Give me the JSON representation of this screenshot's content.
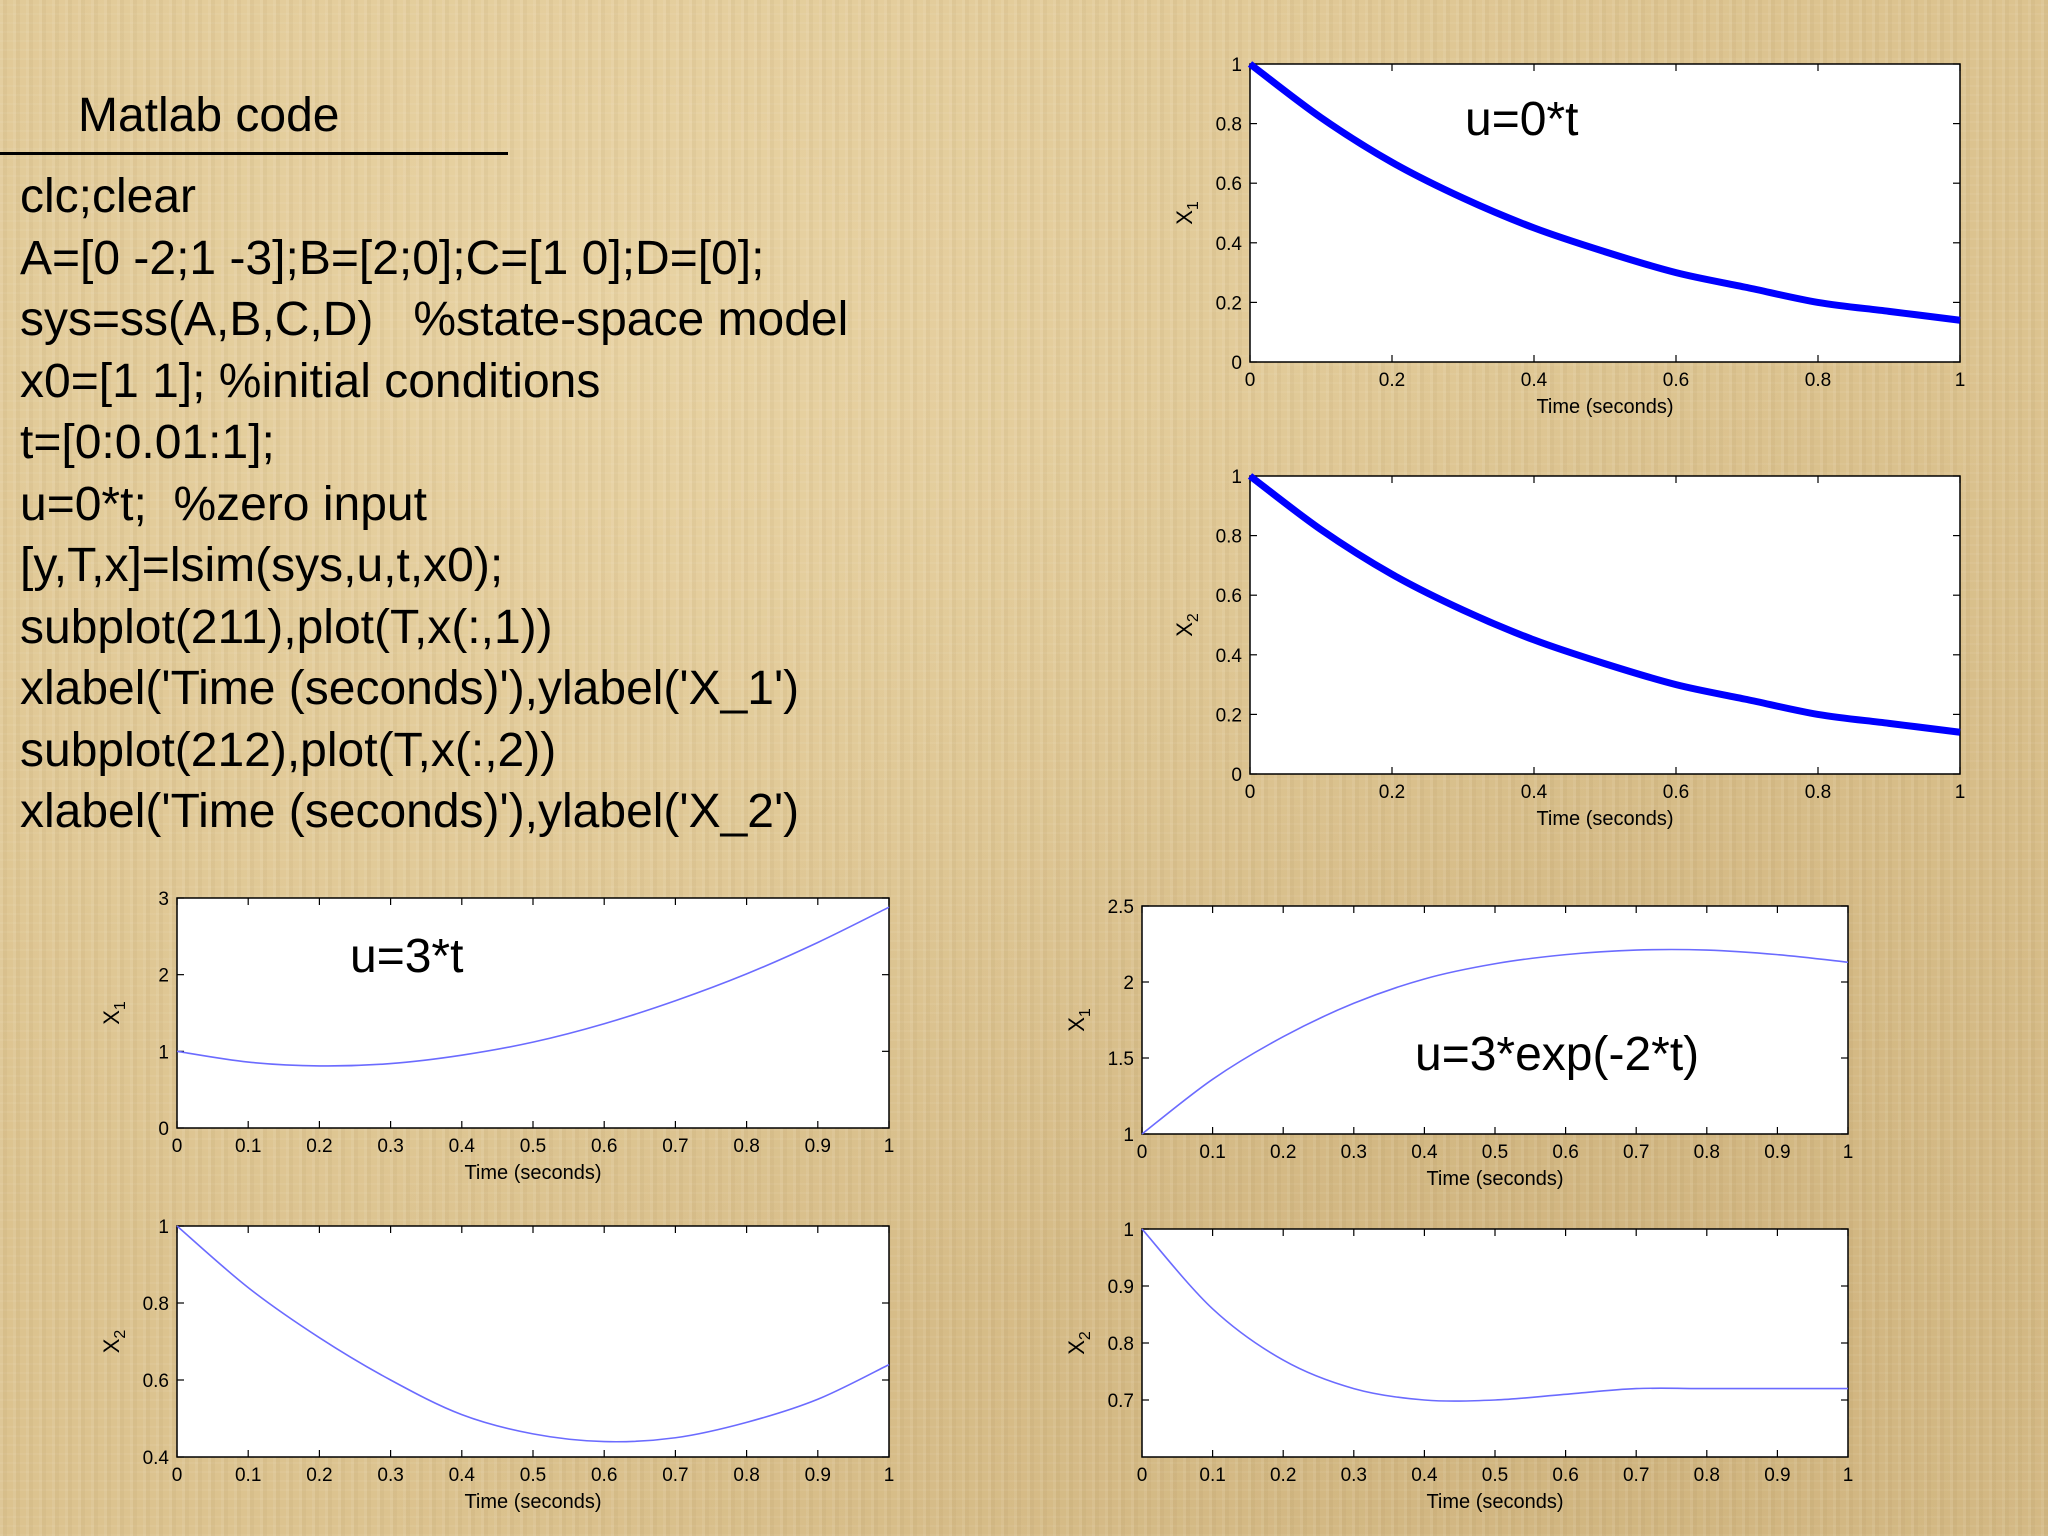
{
  "slide": {
    "heading": "Matlab code",
    "code_lines": [
      "clc;clear",
      "A=[0 -2;1 -3];B=[2;0];C=[1 0];D=[0];",
      "sys=ss(A,B,C,D)   %state-space model",
      "x0=[1 1]; %initial conditions",
      "t=[0:0.01:1];",
      "u=0*t;  %zero input",
      "[y,T,x]=lsim(sys,u,t,x0);",
      "subplot(211),plot(T,x(:,1))",
      "xlabel('Time (seconds)'),ylabel('X_1')",
      "subplot(212),plot(T,x(:,2))",
      "xlabel('Time (seconds)'),ylabel('X_2')"
    ]
  },
  "colors": {
    "line": "#0000ff",
    "thin_line": "#6b6bff",
    "axes": "#000000",
    "plot_bg": "#ffffff"
  },
  "chart_data": [
    {
      "type": "line",
      "annotation": "u=0*t",
      "xlabel": "Time (seconds)",
      "ylabel": "X",
      "ylabel_sub": "1",
      "xlim": [
        0,
        1
      ],
      "ylim": [
        0,
        1
      ],
      "xticks": [
        0,
        0.2,
        0.4,
        0.6,
        0.8,
        1
      ],
      "yticks": [
        0,
        0.2,
        0.4,
        0.6,
        0.8,
        1
      ],
      "x": [
        0,
        0.1,
        0.2,
        0.3,
        0.4,
        0.5,
        0.6,
        0.7,
        0.8,
        0.9,
        1.0
      ],
      "series": [
        {
          "values": [
            1.0,
            0.82,
            0.67,
            0.55,
            0.45,
            0.37,
            0.3,
            0.25,
            0.2,
            0.17,
            0.14
          ]
        }
      ],
      "line_style": "thick"
    },
    {
      "type": "line",
      "xlabel": "Time (seconds)",
      "ylabel": "X",
      "ylabel_sub": "2",
      "xlim": [
        0,
        1
      ],
      "ylim": [
        0,
        1
      ],
      "xticks": [
        0,
        0.2,
        0.4,
        0.6,
        0.8,
        1
      ],
      "yticks": [
        0,
        0.2,
        0.4,
        0.6,
        0.8,
        1
      ],
      "x": [
        0,
        0.1,
        0.2,
        0.3,
        0.4,
        0.5,
        0.6,
        0.7,
        0.8,
        0.9,
        1.0
      ],
      "series": [
        {
          "values": [
            1.0,
            0.82,
            0.67,
            0.55,
            0.45,
            0.37,
            0.3,
            0.25,
            0.2,
            0.17,
            0.14
          ]
        }
      ],
      "line_style": "thick"
    },
    {
      "type": "line",
      "annotation": "u=3*t",
      "xlabel": "Time (seconds)",
      "ylabel": "X",
      "ylabel_sub": "1",
      "xlim": [
        0,
        1
      ],
      "ylim": [
        0,
        3
      ],
      "xticks": [
        0,
        0.1,
        0.2,
        0.3,
        0.4,
        0.5,
        0.6,
        0.7,
        0.8,
        0.9,
        1
      ],
      "yticks": [
        0,
        1,
        2,
        3
      ],
      "x": [
        0,
        0.1,
        0.2,
        0.3,
        0.4,
        0.5,
        0.6,
        0.7,
        0.8,
        0.9,
        1.0
      ],
      "series": [
        {
          "values": [
            1.0,
            0.86,
            0.81,
            0.84,
            0.95,
            1.12,
            1.36,
            1.66,
            2.01,
            2.42,
            2.88
          ]
        }
      ],
      "line_style": "thin"
    },
    {
      "type": "line",
      "xlabel": "Time (seconds)",
      "ylabel": "X",
      "ylabel_sub": "2",
      "xlim": [
        0,
        1
      ],
      "ylim": [
        0.4,
        1
      ],
      "xticks": [
        0,
        0.1,
        0.2,
        0.3,
        0.4,
        0.5,
        0.6,
        0.7,
        0.8,
        0.9,
        1
      ],
      "yticks": [
        0.4,
        0.6,
        0.8,
        1
      ],
      "x": [
        0,
        0.1,
        0.2,
        0.3,
        0.4,
        0.5,
        0.6,
        0.7,
        0.8,
        0.9,
        1.0
      ],
      "series": [
        {
          "values": [
            1.0,
            0.84,
            0.71,
            0.6,
            0.51,
            0.46,
            0.44,
            0.45,
            0.49,
            0.55,
            0.64
          ]
        }
      ],
      "line_style": "thin"
    },
    {
      "type": "line",
      "annotation": "u=3*exp(-2*t)",
      "xlabel": "Time (seconds)",
      "ylabel": "X",
      "ylabel_sub": "1",
      "xlim": [
        0,
        1
      ],
      "ylim": [
        1,
        2.5
      ],
      "xticks": [
        0,
        0.1,
        0.2,
        0.3,
        0.4,
        0.5,
        0.6,
        0.7,
        0.8,
        0.9,
        1
      ],
      "yticks": [
        1,
        1.5,
        2,
        2.5
      ],
      "x": [
        0,
        0.1,
        0.2,
        0.3,
        0.4,
        0.5,
        0.6,
        0.7,
        0.8,
        0.9,
        1.0
      ],
      "series": [
        {
          "values": [
            1.0,
            1.36,
            1.64,
            1.86,
            2.02,
            2.12,
            2.18,
            2.21,
            2.21,
            2.18,
            2.13
          ]
        }
      ],
      "line_style": "thin"
    },
    {
      "type": "line",
      "xlabel": "Time (seconds)",
      "ylabel": "X",
      "ylabel_sub": "2",
      "xlim": [
        0,
        1
      ],
      "ylim": [
        0.6,
        1
      ],
      "xticks": [
        0,
        0.1,
        0.2,
        0.3,
        0.4,
        0.5,
        0.6,
        0.7,
        0.8,
        0.9,
        1
      ],
      "yticks": [
        0.7,
        0.8,
        0.9,
        1
      ],
      "x": [
        0,
        0.1,
        0.2,
        0.3,
        0.4,
        0.5,
        0.6,
        0.7,
        0.8,
        0.9,
        1.0
      ],
      "series": [
        {
          "values": [
            1.0,
            0.86,
            0.77,
            0.72,
            0.7,
            0.7,
            0.71,
            0.72,
            0.72,
            0.72,
            0.72
          ]
        }
      ],
      "line_style": "thin"
    }
  ]
}
